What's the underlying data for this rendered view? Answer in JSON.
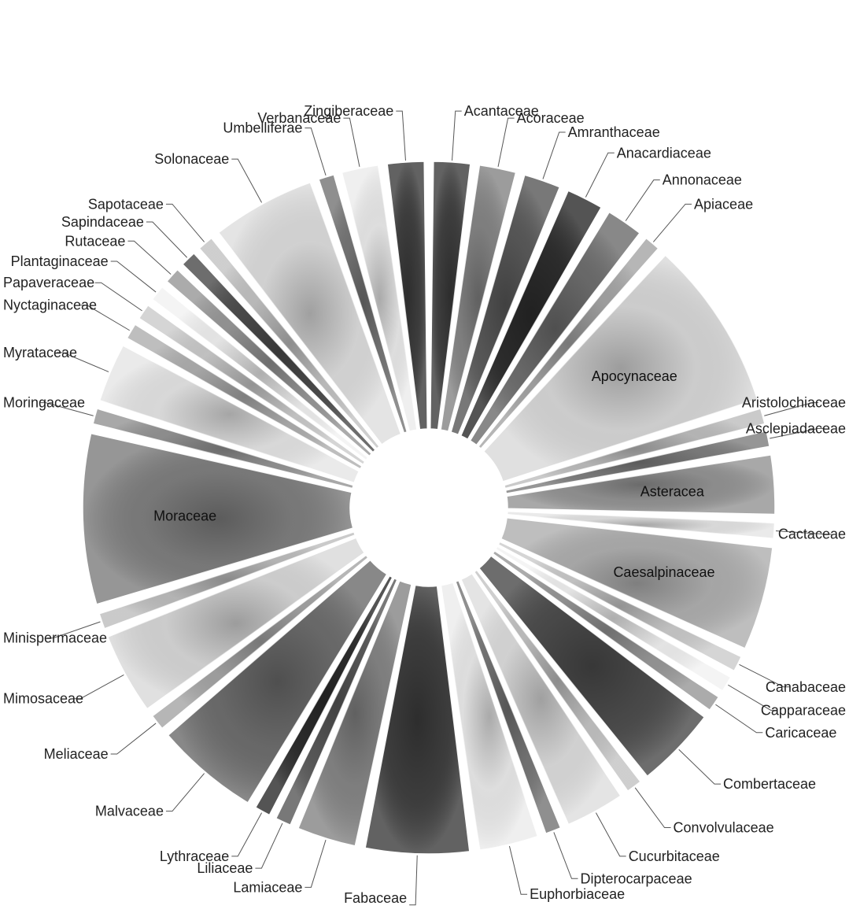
{
  "chart_data": {
    "type": "pie",
    "style": "exploded pie with a hollow centre, shaded greyscale slices, leader-line labels",
    "legend": "none (category labels placed around the pie)",
    "colors": [
      "#3f3f3f",
      "#868686",
      "#5a5a5a",
      "#2e2e2e",
      "#6e6e6e",
      "#a6a6a6",
      "#d9d9d9",
      "#bfbfbf",
      "#7f7f7f",
      "#959595",
      "#e6e6e6",
      "#b0b0b0",
      "#cccccc",
      "#f2f2f2",
      "#999999",
      "#4d4d4d",
      "#c4c4c4",
      "#dedede",
      "#777777",
      "#ececec"
    ],
    "categories": [
      "Acantaceae",
      "Acoraceae",
      "Amranthaceae",
      "Anacardiaceae",
      "Annonaceae",
      "Apiaceae",
      "Apocynaceae",
      "Aristolochiaceae",
      "Asclepiadaceae",
      "Asteracea",
      "Cactaceae",
      "Caesalpinaceae",
      "Canabaceae",
      "Capparaceae",
      "Caricaceae",
      "Combertaceae",
      "Convolvulaceae",
      "Cucurbitaceae",
      "Dipterocarpaceae",
      "Euphorbiaceae",
      "Fabaceae",
      "Lamiaceae",
      "Liliaceae",
      "Lythraceae",
      "Malvaceae",
      "Meliaceae",
      "Mimosaceae",
      "Minispermaceae",
      "Moraceae",
      "Moringaceae",
      "Myrataceae",
      "Nyctaginaceae",
      "Papaveraceae",
      "Plantaginaceae",
      "Rutaceae",
      "Sapindaceae",
      "Sapotaceae",
      "Solonaceae",
      "Umbelliferae",
      "Verbanaceae",
      "Zingiberaceae"
    ],
    "values": [
      2,
      2,
      2,
      2,
      2,
      1,
      8,
      1,
      1,
      3,
      1,
      5,
      1,
      1,
      1,
      4,
      1,
      3,
      1,
      3,
      5,
      3,
      1,
      1,
      5,
      1,
      4,
      1,
      8,
      1,
      3,
      1,
      1,
      1,
      1,
      1,
      1,
      5,
      1,
      2,
      2
    ],
    "inside_labels": [
      "Apocynaceae",
      "Asteracea",
      "Caesalpinaceae",
      "Moraceae"
    ]
  }
}
